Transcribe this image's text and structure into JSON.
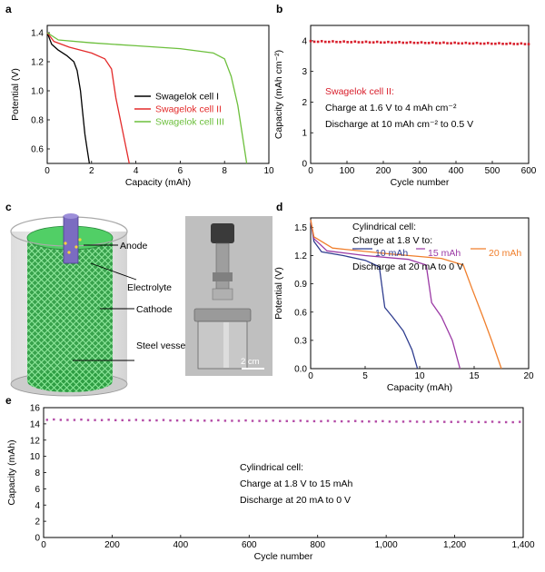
{
  "panels": {
    "a": {
      "letter": "a"
    },
    "b": {
      "letter": "b"
    },
    "c": {
      "letter": "c",
      "labels": [
        "Anode",
        "Electrolyte",
        "Cathode",
        "Steel vessel"
      ],
      "scalebar": "2 cm"
    },
    "d": {
      "letter": "d"
    },
    "e": {
      "letter": "e"
    }
  },
  "colors": {
    "cell1": "#000000",
    "cell2": "#e32a2a",
    "cell3": "#6cbf3c",
    "b_points": "#d81e2b",
    "d_10": "#2f3d8f",
    "d_15": "#9b3aa5",
    "d_20": "#f07f2c",
    "e_points": "#b34aa6",
    "foam": "#37b24d",
    "photo_bg": "#bdbdbd"
  },
  "chart_data": [
    {
      "id": "a",
      "type": "line",
      "xlabel": "Capacity (mAh)",
      "ylabel": "Potential (V)",
      "xlim": [
        0,
        10
      ],
      "ylim": [
        0.5,
        1.45
      ],
      "xticks": [
        "0",
        "2",
        "4",
        "6",
        "8",
        "10"
      ],
      "yticks": [
        "0.6",
        "0.8",
        "1.0",
        "1.2",
        "1.4"
      ],
      "legend_position": "center-right",
      "series": [
        {
          "name": "Swagelok cell I",
          "color": "#000000",
          "x": [
            0,
            0.2,
            0.5,
            0.9,
            1.2,
            1.35,
            1.5,
            1.6,
            1.7,
            1.8,
            1.9
          ],
          "y": [
            1.4,
            1.32,
            1.28,
            1.24,
            1.2,
            1.14,
            1.0,
            0.85,
            0.7,
            0.6,
            0.5
          ]
        },
        {
          "name": "Swagelok cell II",
          "color": "#e32a2a",
          "x": [
            0,
            0.3,
            1.0,
            2.0,
            2.6,
            2.9,
            3.1,
            3.3,
            3.5,
            3.7
          ],
          "y": [
            1.4,
            1.34,
            1.3,
            1.26,
            1.22,
            1.15,
            0.95,
            0.8,
            0.65,
            0.5
          ]
        },
        {
          "name": "Swagelok cell III",
          "color": "#6cbf3c",
          "x": [
            0,
            0.5,
            2.0,
            4.0,
            6.0,
            7.5,
            8.0,
            8.3,
            8.6,
            8.8,
            9.0
          ],
          "y": [
            1.4,
            1.35,
            1.33,
            1.31,
            1.29,
            1.26,
            1.22,
            1.1,
            0.9,
            0.7,
            0.5
          ]
        }
      ]
    },
    {
      "id": "b",
      "type": "scatter",
      "xlabel": "Cycle number",
      "ylabel": "Capacity (mAh cm⁻²)",
      "xlim": [
        0,
        600
      ],
      "ylim": [
        0,
        4.5
      ],
      "xticks": [
        "0",
        "100",
        "200",
        "300",
        "400",
        "500",
        "600"
      ],
      "yticks": [
        "0",
        "1",
        "2",
        "3",
        "4"
      ],
      "series": [
        {
          "name": "",
          "start_cycle": 0,
          "end_cycle": 600,
          "count": 60,
          "value_start": 3.97,
          "value_end": 3.89
        }
      ],
      "annotation": {
        "title": "Swagelok cell II:",
        "line1": "Charge at 1.6 V to 4 mAh cm⁻²",
        "line2": "Discharge at 10 mAh cm⁻² to 0.5 V"
      }
    },
    {
      "id": "d",
      "type": "line",
      "xlabel": "Capacity (mAh)",
      "ylabel": "Potential (V)",
      "xlim": [
        0,
        20
      ],
      "ylim": [
        0,
        1.6
      ],
      "xticks": [
        "0",
        "5",
        "10",
        "15",
        "20"
      ],
      "yticks": [
        "0.0",
        "0.3",
        "0.6",
        "0.9",
        "1.2",
        "1.5"
      ],
      "annotation": {
        "line1": "Cylindrical cell:",
        "line2": "Charge at 1.8 V to:",
        "line3": "Discharge at 20 mA to 0 V"
      },
      "series": [
        {
          "name": "10 mAh",
          "color": "#2f3d8f",
          "x": [
            0,
            0.3,
            1.0,
            3.0,
            5.0,
            6.3,
            6.8,
            7.5,
            8.5,
            9.3,
            9.8
          ],
          "y": [
            1.58,
            1.35,
            1.24,
            1.2,
            1.15,
            1.08,
            0.65,
            0.55,
            0.4,
            0.2,
            0.0
          ]
        },
        {
          "name": "15 mAh",
          "color": "#9b3aa5",
          "x": [
            0,
            0.3,
            1.5,
            5.0,
            9.0,
            10.6,
            11.1,
            12.0,
            13.0,
            13.7
          ],
          "y": [
            1.57,
            1.38,
            1.25,
            1.2,
            1.16,
            1.1,
            0.7,
            0.55,
            0.3,
            0.0
          ]
        },
        {
          "name": "20 mAh",
          "color": "#f07f2c",
          "x": [
            0,
            0.3,
            2.0,
            7.0,
            12.0,
            14.0,
            14.8,
            15.8,
            16.6,
            17.5
          ],
          "y": [
            1.58,
            1.4,
            1.28,
            1.22,
            1.17,
            1.1,
            0.85,
            0.55,
            0.3,
            0.0
          ]
        }
      ]
    },
    {
      "id": "e",
      "type": "scatter",
      "xlabel": "Cycle number",
      "ylabel": "Capacity (mAh)",
      "xlim": [
        0,
        1400
      ],
      "ylim": [
        0,
        16
      ],
      "xticks": [
        "0",
        "200",
        "400",
        "600",
        "800",
        "1,000",
        "1,200",
        "1,400"
      ],
      "yticks": [
        "0",
        "2",
        "4",
        "6",
        "8",
        "10",
        "12",
        "14",
        "16"
      ],
      "series": [
        {
          "name": "",
          "start_cycle": 10,
          "end_cycle": 1390,
          "count": 70,
          "value_start": 14.5,
          "value_end": 14.2
        }
      ],
      "annotation": {
        "line1": "Cylindrical cell:",
        "line2": "Charge at 1.8 V to 15 mAh",
        "line3": "Discharge at 20 mA to 0 V"
      }
    }
  ]
}
